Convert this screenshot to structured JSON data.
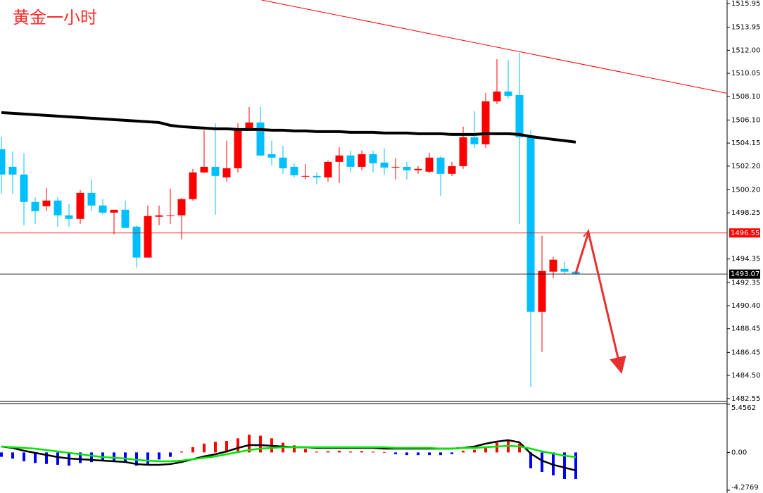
{
  "chart_data": [
    {
      "type": "candlestick",
      "title": "黄金一小时",
      "open": [
        1503.63,
        1502.14,
        1501.49,
        1499.17,
        1498.81,
        1499.29,
        1498.04,
        1497.74,
        1499.94,
        1498.87,
        1498.27,
        1498.51,
        1497.08,
        1494.47,
        1497.92,
        1497.98,
        1498.04,
        1499.41,
        1501.67,
        1502.14,
        1501.25,
        1502.02,
        1505.36,
        1505.89,
        1503.21,
        1502.92,
        1502.14,
        1501.31,
        1501.37,
        1501.25,
        1502.56,
        1503.1,
        1502.14,
        1503.21,
        1502.5,
        1502.08,
        1502.14,
        1501.85,
        1501.73,
        1502.92,
        1501.55,
        1502.2,
        1504.64,
        1504.05,
        1507.68,
        1508.51,
        1508.21,
        1504.64,
        1489.88,
        1493.28,
        1493.51,
        1493.28
      ],
      "high": [
        1504.64,
        1503.45,
        1503.27,
        1499.58,
        1500.36,
        1499.58,
        1498.99,
        1500.18,
        1501.07,
        1499.41,
        1498.51,
        1499.29,
        1497.2,
        1498.87,
        1498.87,
        1500.3,
        1499.52,
        1501.97,
        1505.24,
        1505.83,
        1504.35,
        1505.83,
        1507.2,
        1507.2,
        1504.35,
        1503.93,
        1502.44,
        1502.38,
        1501.67,
        1502.68,
        1503.81,
        1503.51,
        1503.51,
        1503.51,
        1503.69,
        1502.86,
        1502.56,
        1502.2,
        1503.33,
        1503.04,
        1502.56,
        1505.54,
        1506.85,
        1508.39,
        1511.25,
        1511.19,
        1511.79,
        1505.24,
        1496.31,
        1494.52,
        1494.11,
        1493.33
      ],
      "low": [
        1499.88,
        1499.88,
        1497.2,
        1497.32,
        1498.39,
        1497.08,
        1497.08,
        1497.32,
        1498.39,
        1498.1,
        1496.43,
        1496.97,
        1493.63,
        1494.47,
        1497.2,
        1497.32,
        1496.01,
        1499.29,
        1501.61,
        1498.1,
        1500.89,
        1501.67,
        1505.24,
        1503.04,
        1502.26,
        1501.55,
        1501.25,
        1501.07,
        1500.66,
        1500.89,
        1500.77,
        1501.67,
        1501.85,
        1501.67,
        1501.49,
        1501.07,
        1501.07,
        1501.55,
        1501.61,
        1499.7,
        1501.37,
        1501.97,
        1503.75,
        1503.75,
        1507.44,
        1507.92,
        1497.32,
        1483.51,
        1486.49,
        1492.74,
        1493.04,
        1493.04
      ],
      "close": [
        1501.49,
        1501.49,
        1499.17,
        1498.39,
        1499.29,
        1498.04,
        1497.74,
        1499.94,
        1498.87,
        1498.27,
        1498.51,
        1496.97,
        1494.47,
        1497.98,
        1498.04,
        1498.04,
        1499.41,
        1501.67,
        1502.14,
        1501.37,
        1502.02,
        1505.36,
        1505.89,
        1503.1,
        1502.92,
        1502.02,
        1501.43,
        1501.37,
        1501.25,
        1502.56,
        1503.1,
        1502.14,
        1503.21,
        1502.44,
        1502.08,
        1502.14,
        1501.85,
        1501.97,
        1502.92,
        1501.55,
        1502.2,
        1504.64,
        1504.05,
        1507.68,
        1508.51,
        1508.15,
        1504.64,
        1489.88,
        1493.33,
        1494.29,
        1493.28,
        1493.07
      ],
      "up_color": "#ff0000",
      "down_color": "#00bfff",
      "ma": {
        "color": "#000000",
        "values": [
          1506.73,
          1506.67,
          1506.61,
          1506.55,
          1506.49,
          1506.43,
          1506.37,
          1506.31,
          1506.25,
          1506.19,
          1506.13,
          1506.07,
          1506.01,
          1505.95,
          1505.89,
          1505.65,
          1505.54,
          1505.48,
          1505.42,
          1505.36,
          1505.36,
          1505.3,
          1505.3,
          1505.3,
          1505.24,
          1505.24,
          1505.18,
          1505.18,
          1505.12,
          1505.12,
          1505.12,
          1505.06,
          1505.06,
          1505.06,
          1505.0,
          1505.0,
          1505.0,
          1504.94,
          1504.94,
          1504.94,
          1504.88,
          1504.88,
          1504.88,
          1504.94,
          1504.94,
          1504.94,
          1504.88,
          1504.7,
          1504.58,
          1504.46,
          1504.35,
          1504.23
        ]
      },
      "trend_line": {
        "color": "#ff0000",
        "x": [
          23.1,
          64.6
        ],
        "y": [
          1516.25,
          1508.33
        ]
      },
      "price_lines": [
        {
          "value": 1496.55,
          "color": "#ff0000"
        },
        {
          "value": 1493.07,
          "color": "#000000"
        }
      ],
      "ylim": [
        1482.3,
        1516.25
      ],
      "yticks": [
        1515.95,
        1513.95,
        {
          "value": 1512,
          "label": "1512.00"
        },
        1510.05,
        {
          "value": 1508.1,
          "label": "1508.10"
        },
        {
          "value": 1506.1,
          "label": "1506.10"
        },
        1504.15,
        {
          "value": 1502.2,
          "label": "1502.20"
        },
        {
          "value": 1500.2,
          "label": "1500.20"
        },
        1498.25,
        1494.35,
        1492.35,
        {
          "value": 1490.4,
          "label": "1490.40"
        },
        1488.45,
        1486.45,
        {
          "value": 1484.5,
          "label": "1484.50"
        },
        1482.55
      ]
    },
    {
      "type": "macd",
      "histogram": [
        -0.5,
        -0.7,
        -1.0,
        -1.2,
        -1.3,
        -1.4,
        -1.5,
        -1.2,
        -1.1,
        -1.0,
        -1.0,
        -1.1,
        -1.5,
        -1.3,
        -0.8,
        -0.5,
        0.1,
        0.6,
        1.0,
        1.2,
        1.3,
        1.6,
        2.0,
        1.9,
        1.6,
        1.1,
        0.8,
        0.4,
        0.1,
        0.15,
        0.2,
        0.1,
        0.15,
        0.1,
        0.05,
        -0.2,
        -0.3,
        -0.3,
        -0.3,
        -0.3,
        -0.2,
        0.2,
        0.3,
        0.7,
        1.1,
        1.3,
        1.0,
        -1.8,
        -2.2,
        -2.6,
        -3.0,
        -3.0
      ],
      "up_color": "#ff0000",
      "down_color": "#0000ff",
      "series": [
        {
          "color": "#000000",
          "values": [
            0.67,
            0.51,
            0.19,
            -0.05,
            -0.29,
            -0.53,
            -0.69,
            -0.77,
            -0.85,
            -0.93,
            -1.01,
            -1.09,
            -1.32,
            -1.4,
            -1.4,
            -1.32,
            -1.09,
            -0.77,
            -0.45,
            -0.21,
            0.11,
            0.51,
            0.83,
            0.83,
            0.75,
            0.67,
            0.59,
            0.59,
            0.51,
            0.51,
            0.51,
            0.51,
            0.51,
            0.51,
            0.43,
            0.43,
            0.43,
            0.43,
            0.43,
            0.43,
            0.43,
            0.51,
            0.67,
            0.99,
            1.23,
            1.39,
            1.15,
            -0.13,
            -0.93,
            -1.4,
            -1.72,
            -2.04
          ]
        },
        {
          "color": "#00e600",
          "values": [
            0.67,
            0.59,
            0.51,
            0.43,
            0.27,
            0.11,
            -0.05,
            -0.21,
            -0.37,
            -0.53,
            -0.61,
            -0.69,
            -0.85,
            -0.93,
            -1.01,
            -1.01,
            -0.93,
            -0.77,
            -0.61,
            -0.45,
            -0.21,
            0.03,
            0.27,
            0.43,
            0.51,
            0.59,
            0.59,
            0.59,
            0.59,
            0.59,
            0.59,
            0.59,
            0.59,
            0.59,
            0.59,
            0.51,
            0.51,
            0.51,
            0.51,
            0.43,
            0.43,
            0.51,
            0.51,
            0.59,
            0.67,
            0.75,
            0.67,
            0.43,
            0.11,
            -0.13,
            -0.37,
            -0.53
          ]
        }
      ],
      "ylim": [
        -4.2769,
        5.4562
      ],
      "yticks": [
        5.4562,
        {
          "value": 0,
          "label": "0.00"
        },
        -4.2769
      ]
    }
  ]
}
